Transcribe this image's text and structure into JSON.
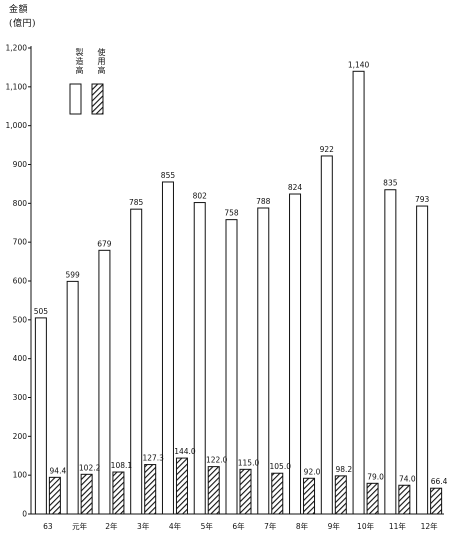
{
  "chart_data": {
    "type": "bar",
    "ylabel_line1": "金額",
    "ylabel_line2": "(億円)",
    "categories": [
      "63",
      "元年",
      "2年",
      "3年",
      "4年",
      "5年",
      "6年",
      "7年",
      "8年",
      "9年",
      "10年",
      "11年",
      "12年"
    ],
    "series": [
      {
        "name": "製造高",
        "pattern": "open",
        "values": [
          505,
          599,
          679,
          785,
          855,
          802,
          758,
          788,
          824,
          922,
          1140,
          835,
          793
        ],
        "labels": [
          "505",
          "599",
          "679",
          "785",
          "855",
          "802",
          "758",
          "788",
          "824",
          "922",
          "1,140",
          "835",
          "793"
        ]
      },
      {
        "name": "使用高",
        "pattern": "hatched",
        "values": [
          94.4,
          102.2,
          108.1,
          127.3,
          144.0,
          122.0,
          115.0,
          105.0,
          92.0,
          98.2,
          79.0,
          74.0,
          66.4
        ],
        "labels": [
          "94.4",
          "102.2",
          "108.1",
          "127.3",
          "144.0",
          "122.0",
          "115.0",
          "105.0",
          "92.0",
          "98.2",
          "79.0",
          "74.0",
          "66.4"
        ]
      }
    ],
    "ylim": [
      0,
      1200
    ],
    "yticks": [
      0,
      100,
      200,
      300,
      400,
      500,
      600,
      700,
      800,
      900,
      1000,
      1100,
      1200
    ],
    "ytick_labels": [
      "0",
      "100",
      "200",
      "300",
      "400",
      "500",
      "600",
      "700",
      "800",
      "900",
      "1,000",
      "1,100",
      "1,200"
    ],
    "legend_position": "top-left",
    "grid": false,
    "colors": {
      "line": "#111111",
      "fill_open": "#ffffff"
    }
  }
}
